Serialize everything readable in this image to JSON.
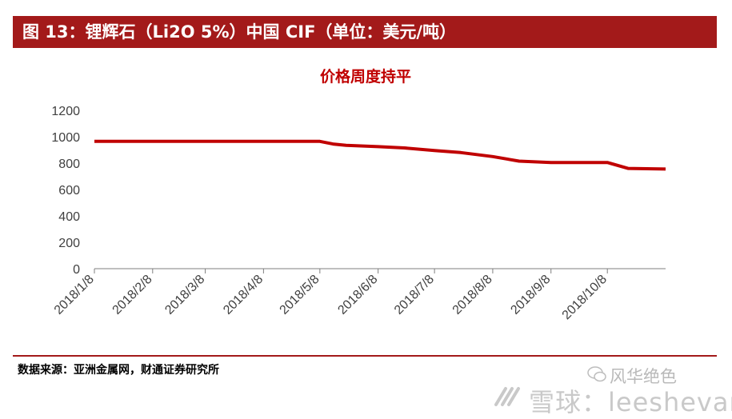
{
  "header": {
    "title": "图 13：锂辉石（Li2O 5%）中国 CIF（单位：美元/吨）"
  },
  "footer": {
    "source": "数据来源：亚洲金属网，财通证券研究所"
  },
  "watermark": {
    "brand": "风华绝色",
    "site": "雪球：leeshevar"
  },
  "chart_data": {
    "type": "line",
    "title": "价格周度持平",
    "xlabel": "",
    "ylabel": "",
    "ylim": [
      0,
      1200
    ],
    "yticks": [
      0,
      200,
      400,
      600,
      800,
      1000,
      1200
    ],
    "xticks": [
      "2018/1/8",
      "2018/2/8",
      "2018/3/8",
      "2018/4/8",
      "2018/5/8",
      "2018/6/8",
      "2018/7/8",
      "2018/8/8",
      "2018/9/8",
      "2018/10/8"
    ],
    "grid": false,
    "legend": "none",
    "line_color": "#c00000",
    "title_color": "#c00000",
    "series": [
      {
        "x": [
          "2018/1/8",
          "2018/5/8",
          "2018/5/15",
          "2018/5/22",
          "2018/6/8",
          "2018/6/22",
          "2018/7/8",
          "2018/7/22",
          "2018/8/8",
          "2018/8/22",
          "2018/9/8",
          "2018/9/25",
          "2018/10/8",
          "2018/10/19",
          "2018/11/8"
        ],
        "values": [
          965,
          965,
          945,
          935,
          925,
          915,
          895,
          880,
          850,
          815,
          805,
          805,
          805,
          760,
          755
        ]
      }
    ]
  }
}
